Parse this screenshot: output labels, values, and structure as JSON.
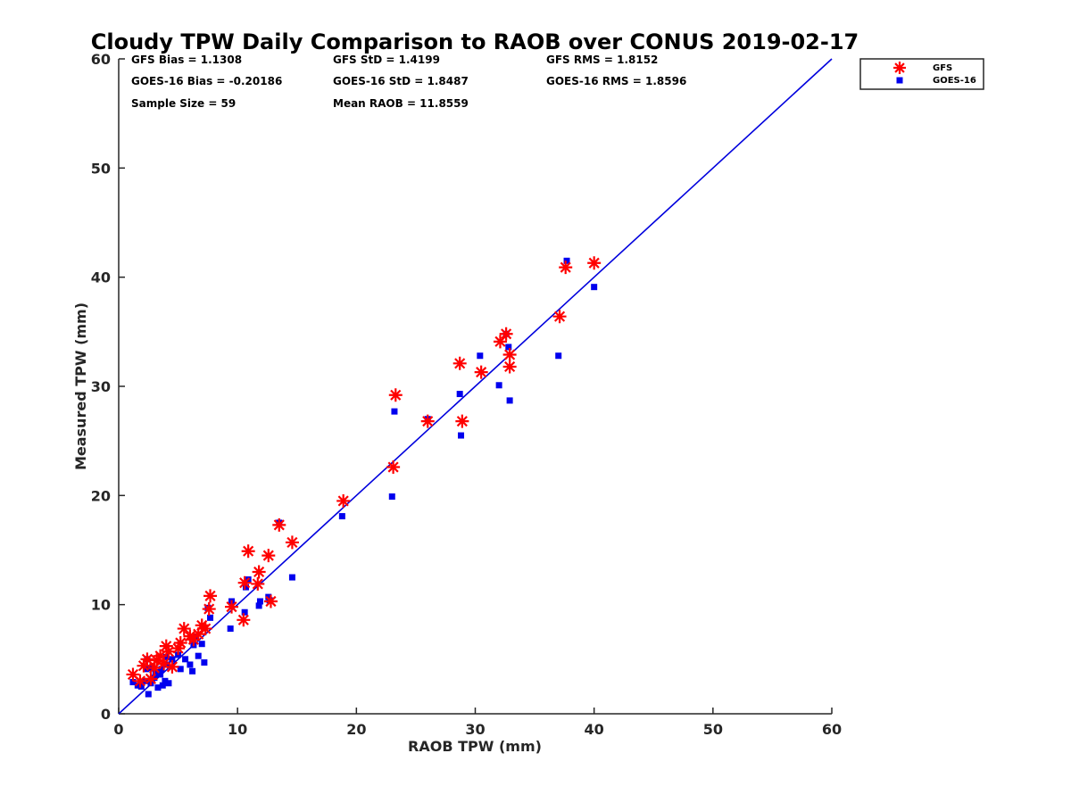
{
  "chart_data": {
    "type": "scatter",
    "title": "Cloudy TPW Daily Comparison to RAOB over CONUS 2019-02-17",
    "xlabel": "RAOB TPW (mm)",
    "ylabel": "Measured TPW (mm)",
    "xlim": [
      0,
      60
    ],
    "ylim": [
      0,
      60
    ],
    "xticks": [
      "0",
      "10",
      "20",
      "30",
      "40",
      "50",
      "60"
    ],
    "yticks": [
      "0",
      "10",
      "20",
      "30",
      "40",
      "50",
      "60"
    ],
    "grid": false,
    "legend_position": "top-right",
    "reference_line": {
      "name": "1:1 line",
      "x": [
        0,
        60
      ],
      "y": [
        0,
        60
      ],
      "color": "#0000dd"
    },
    "stats": {
      "gfs_bias": "GFS Bias = 1.1308",
      "gfs_std": "GFS StD = 1.4199",
      "gfs_rms": "GFS RMS = 1.8152",
      "goes_bias": "GOES-16 Bias = -0.20186",
      "goes_std": "GOES-16 StD = 1.8487",
      "goes_rms": "GOES-16 RMS = 1.8596",
      "sample_size": "Sample Size = 59",
      "mean_raob": "Mean RAOB = 11.8559"
    },
    "series": [
      {
        "name": "GFS",
        "marker": "asterisk",
        "color": "#ff0000",
        "points": [
          [
            1.2,
            3.6
          ],
          [
            1.8,
            3.0
          ],
          [
            2.1,
            4.4
          ],
          [
            2.4,
            5.0
          ],
          [
            2.7,
            3.2
          ],
          [
            3.0,
            4.2
          ],
          [
            3.2,
            4.9
          ],
          [
            3.5,
            5.3
          ],
          [
            3.8,
            4.6
          ],
          [
            4.0,
            6.2
          ],
          [
            4.2,
            5.7
          ],
          [
            4.5,
            4.3
          ],
          [
            5.0,
            6.0
          ],
          [
            5.2,
            6.5
          ],
          [
            5.5,
            7.8
          ],
          [
            6.0,
            7.1
          ],
          [
            6.3,
            6.8
          ],
          [
            6.7,
            7.3
          ],
          [
            7.0,
            8.1
          ],
          [
            7.3,
            7.8
          ],
          [
            7.6,
            9.6
          ],
          [
            7.7,
            10.8
          ],
          [
            9.5,
            9.8
          ],
          [
            10.5,
            8.6
          ],
          [
            10.6,
            12.0
          ],
          [
            10.9,
            14.9
          ],
          [
            11.7,
            11.9
          ],
          [
            11.8,
            13.0
          ],
          [
            12.6,
            14.5
          ],
          [
            12.8,
            10.3
          ],
          [
            13.5,
            17.3
          ],
          [
            14.6,
            15.7
          ],
          [
            18.9,
            19.5
          ],
          [
            23.1,
            22.6
          ],
          [
            23.3,
            29.2
          ],
          [
            26.0,
            26.8
          ],
          [
            28.7,
            32.1
          ],
          [
            28.9,
            26.8
          ],
          [
            30.5,
            31.3
          ],
          [
            32.1,
            34.1
          ],
          [
            32.6,
            34.8
          ],
          [
            32.9,
            32.9
          ],
          [
            32.9,
            31.8
          ],
          [
            37.1,
            36.4
          ],
          [
            37.6,
            40.9
          ],
          [
            40.0,
            41.3
          ]
        ]
      },
      {
        "name": "GOES-16",
        "marker": "square",
        "color": "#0000ee",
        "points": [
          [
            1.2,
            2.9
          ],
          [
            1.6,
            2.6
          ],
          [
            1.9,
            2.5
          ],
          [
            2.2,
            3.0
          ],
          [
            2.3,
            4.1
          ],
          [
            2.4,
            5.0
          ],
          [
            2.5,
            1.8
          ],
          [
            2.7,
            2.8
          ],
          [
            2.8,
            4.2
          ],
          [
            3.0,
            3.3
          ],
          [
            3.1,
            3.8
          ],
          [
            3.3,
            2.4
          ],
          [
            3.5,
            3.6
          ],
          [
            3.6,
            4.1
          ],
          [
            3.7,
            2.6
          ],
          [
            3.9,
            3.0
          ],
          [
            4.0,
            5.2
          ],
          [
            4.1,
            4.5
          ],
          [
            4.2,
            2.8
          ],
          [
            4.5,
            5.0
          ],
          [
            5.0,
            5.4
          ],
          [
            5.2,
            4.1
          ],
          [
            5.6,
            5.0
          ],
          [
            6.0,
            4.5
          ],
          [
            6.2,
            3.9
          ],
          [
            6.3,
            6.3
          ],
          [
            6.5,
            7.0
          ],
          [
            6.7,
            5.3
          ],
          [
            7.0,
            6.4
          ],
          [
            7.2,
            4.7
          ],
          [
            7.5,
            9.7
          ],
          [
            7.7,
            8.8
          ],
          [
            9.4,
            7.8
          ],
          [
            9.5,
            10.3
          ],
          [
            10.6,
            9.3
          ],
          [
            10.7,
            11.6
          ],
          [
            10.9,
            12.3
          ],
          [
            11.8,
            9.9
          ],
          [
            11.9,
            10.3
          ],
          [
            12.6,
            10.7
          ],
          [
            12.7,
            10.4
          ],
          [
            13.5,
            17.5
          ],
          [
            14.6,
            12.5
          ],
          [
            18.8,
            18.1
          ],
          [
            23.0,
            19.9
          ],
          [
            23.2,
            27.7
          ],
          [
            26.0,
            27.0
          ],
          [
            28.7,
            29.3
          ],
          [
            28.8,
            25.5
          ],
          [
            30.4,
            32.8
          ],
          [
            32.0,
            30.1
          ],
          [
            32.6,
            34.8
          ],
          [
            32.8,
            33.6
          ],
          [
            32.9,
            28.7
          ],
          [
            37.0,
            32.8
          ],
          [
            37.7,
            41.5
          ],
          [
            40.0,
            39.1
          ]
        ]
      }
    ]
  }
}
